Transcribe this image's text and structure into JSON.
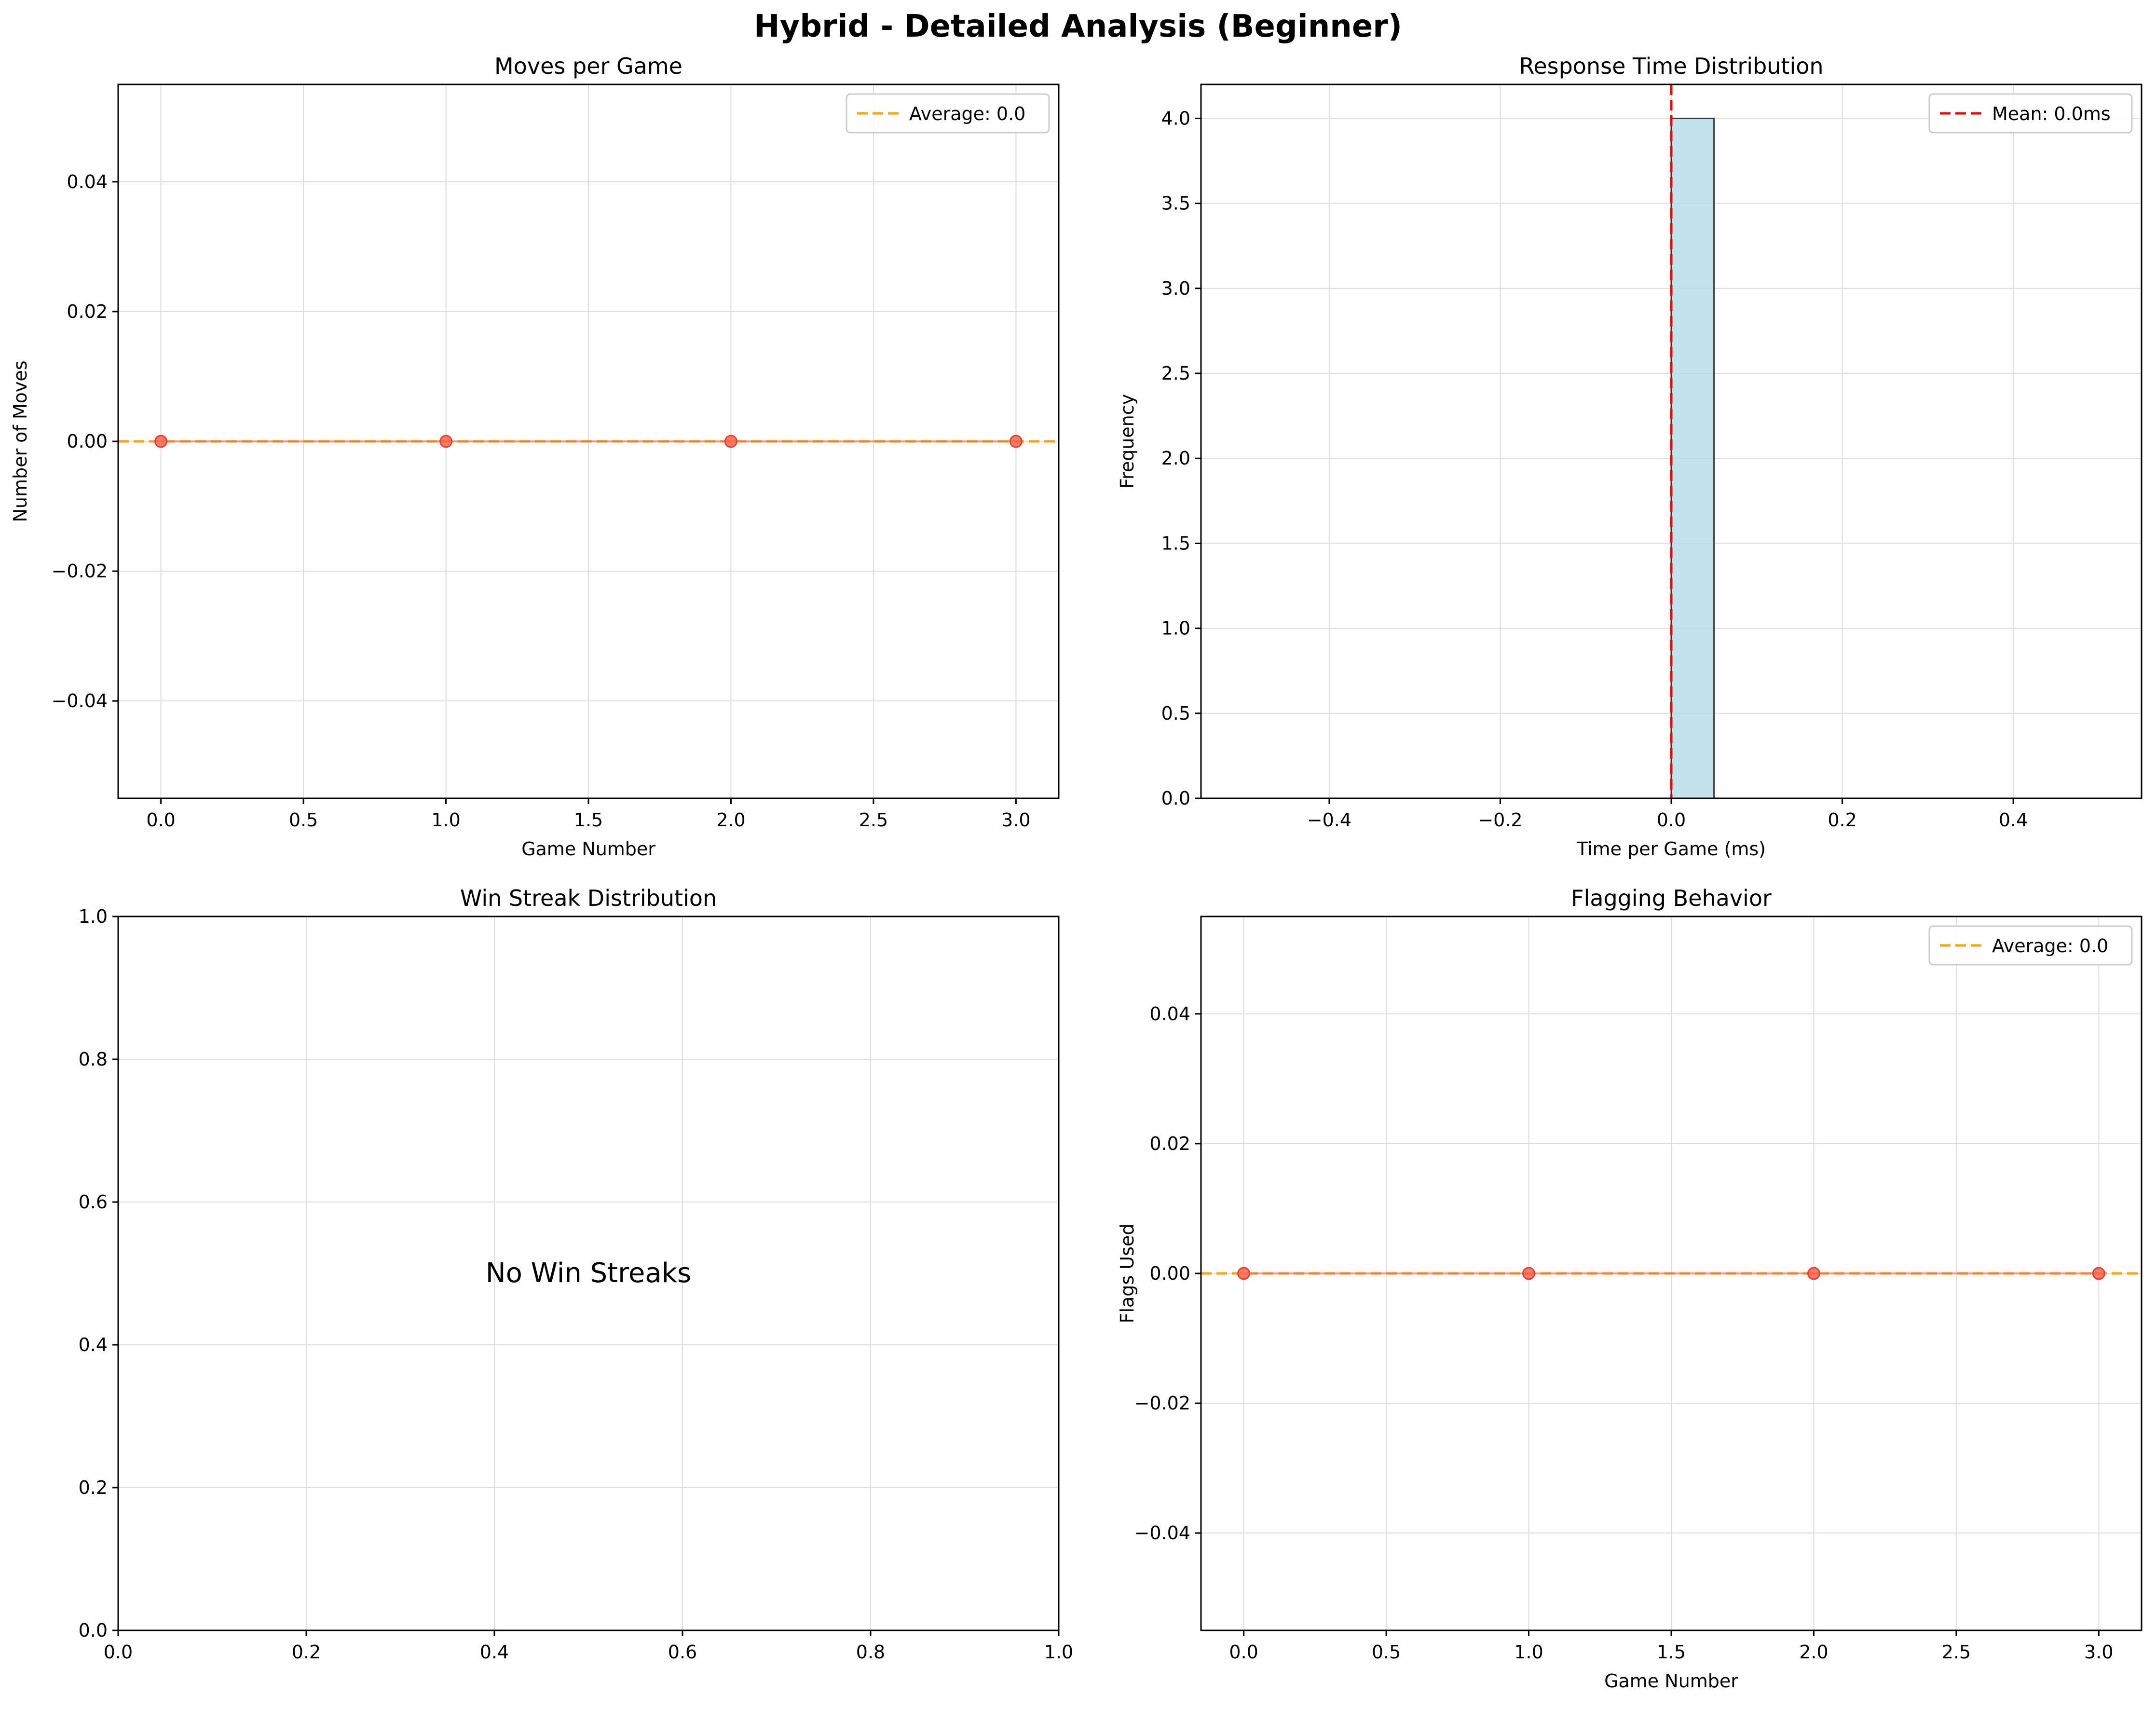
{
  "figure": {
    "suptitle": "Hybrid - Detailed Analysis (Beginner)"
  },
  "colors": {
    "line_marker": "#ff6347",
    "marker_edge": "#e0413a",
    "avg_line": "#ffa500",
    "mean_line": "#ff0000",
    "hist_fill": "#add8e6",
    "grid": "#dddddd"
  },
  "chart_data": [
    {
      "type": "line",
      "title": "Moves per Game",
      "xlabel": "Game Number",
      "ylabel": "Number of Moves",
      "x": [
        0,
        1,
        2,
        3
      ],
      "series": [
        {
          "values": [
            0,
            0,
            0,
            0
          ]
        }
      ],
      "hline": {
        "value": 0.0,
        "label": "Average: 0.0",
        "style": "dashed",
        "color": "#ffa500"
      },
      "xlim": [
        -0.15,
        3.15
      ],
      "ylim": [
        -0.055,
        0.055
      ],
      "xticks": [
        0.0,
        0.5,
        1.0,
        1.5,
        2.0,
        2.5,
        3.0
      ],
      "xtick_labels": [
        "0.0",
        "0.5",
        "1.0",
        "1.5",
        "2.0",
        "2.5",
        "3.0"
      ],
      "yticks": [
        -0.04,
        -0.02,
        0.0,
        0.02,
        0.04
      ],
      "ytick_labels": [
        "−0.04",
        "−0.02",
        "0.00",
        "0.02",
        "0.04"
      ],
      "legend": "top-right",
      "grid": true
    },
    {
      "type": "bar",
      "subtype": "histogram",
      "title": "Response Time Distribution",
      "xlabel": "Time per Game (ms)",
      "ylabel": "Frequency",
      "bins": [
        -0.5,
        -0.45,
        -0.4,
        -0.35,
        -0.3,
        -0.25,
        -0.2,
        -0.15,
        -0.1,
        -0.05,
        0.0,
        0.05,
        0.1,
        0.15,
        0.2,
        0.25,
        0.3,
        0.35,
        0.4,
        0.45,
        0.5
      ],
      "counts": [
        0,
        0,
        0,
        0,
        0,
        0,
        0,
        0,
        0,
        0,
        4,
        0,
        0,
        0,
        0,
        0,
        0,
        0,
        0,
        0
      ],
      "vline": {
        "value": 0.0,
        "label": "Mean: 0.0ms",
        "style": "dashed",
        "color": "#ff0000"
      },
      "xlim": [
        -0.55,
        0.55
      ],
      "ylim": [
        0,
        4.2
      ],
      "xticks": [
        -0.4,
        -0.2,
        0.0,
        0.2,
        0.4
      ],
      "xtick_labels": [
        "−0.4",
        "−0.2",
        "0.0",
        "0.2",
        "0.4"
      ],
      "yticks": [
        0.0,
        0.5,
        1.0,
        1.5,
        2.0,
        2.5,
        3.0,
        3.5,
        4.0
      ],
      "ytick_labels": [
        "0.0",
        "0.5",
        "1.0",
        "1.5",
        "2.0",
        "2.5",
        "3.0",
        "3.5",
        "4.0"
      ],
      "legend": "top-right",
      "grid": true
    },
    {
      "type": "bar",
      "title": "Win Streak Distribution",
      "xlabel": "",
      "ylabel": "",
      "annotation": "No Win Streaks",
      "xlim": [
        0,
        1
      ],
      "ylim": [
        0,
        1
      ],
      "xticks": [
        0.0,
        0.2,
        0.4,
        0.6,
        0.8,
        1.0
      ],
      "xtick_labels": [
        "0.0",
        "0.2",
        "0.4",
        "0.6",
        "0.8",
        "1.0"
      ],
      "yticks": [
        0.0,
        0.2,
        0.4,
        0.6,
        0.8,
        1.0
      ],
      "ytick_labels": [
        "0.0",
        "0.2",
        "0.4",
        "0.6",
        "0.8",
        "1.0"
      ],
      "grid": true
    },
    {
      "type": "line",
      "title": "Flagging Behavior",
      "xlabel": "Game Number",
      "ylabel": "Flags Used",
      "x": [
        0,
        1,
        2,
        3
      ],
      "series": [
        {
          "values": [
            0,
            0,
            0,
            0
          ]
        }
      ],
      "hline": {
        "value": 0.0,
        "label": "Average: 0.0",
        "style": "dashed",
        "color": "#ffa500"
      },
      "xlim": [
        -0.15,
        3.15
      ],
      "ylim": [
        -0.055,
        0.055
      ],
      "xticks": [
        0.0,
        0.5,
        1.0,
        1.5,
        2.0,
        2.5,
        3.0
      ],
      "xtick_labels": [
        "0.0",
        "0.5",
        "1.0",
        "1.5",
        "2.0",
        "2.5",
        "3.0"
      ],
      "yticks": [
        -0.04,
        -0.02,
        0.0,
        0.02,
        0.04
      ],
      "ytick_labels": [
        "−0.04",
        "−0.02",
        "0.00",
        "0.02",
        "0.04"
      ],
      "legend": "top-right",
      "grid": true
    }
  ]
}
